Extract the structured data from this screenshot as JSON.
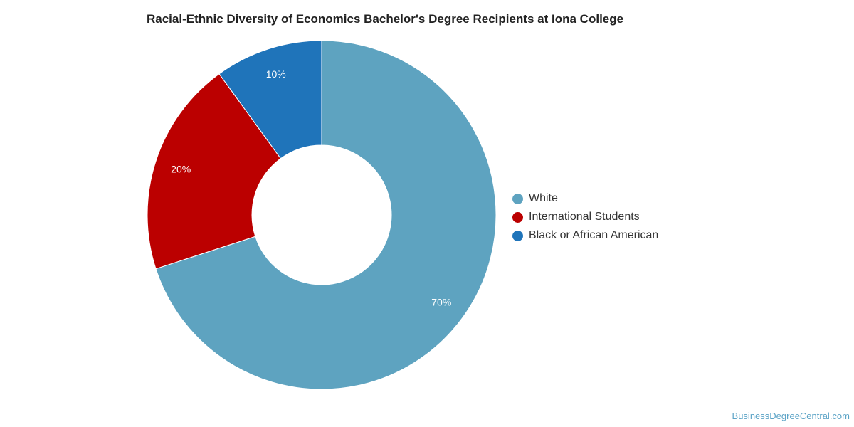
{
  "chart_data": {
    "type": "pie",
    "variant": "donut",
    "title": "Racial-Ethnic Diversity of Economics Bachelor's Degree Recipients at Iona College",
    "slices": [
      {
        "name": "White",
        "value": 70,
        "label": "70%",
        "color": "#5ea3c0"
      },
      {
        "name": "International Students",
        "value": 20,
        "label": "20%",
        "color": "#bb0000"
      },
      {
        "name": "Black or African American",
        "value": 10,
        "label": "10%",
        "color": "#1f74ba"
      }
    ],
    "legend_position": "right"
  },
  "footer": {
    "credit": "BusinessDegreeCentral.com"
  }
}
